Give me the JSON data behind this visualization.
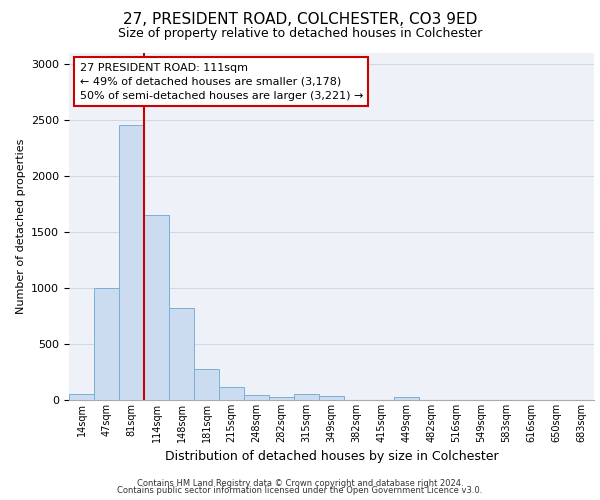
{
  "title1": "27, PRESIDENT ROAD, COLCHESTER, CO3 9ED",
  "title2": "Size of property relative to detached houses in Colchester",
  "xlabel": "Distribution of detached houses by size in Colchester",
  "ylabel": "Number of detached properties",
  "categories": [
    "14sqm",
    "47sqm",
    "81sqm",
    "114sqm",
    "148sqm",
    "181sqm",
    "215sqm",
    "248sqm",
    "282sqm",
    "315sqm",
    "349sqm",
    "382sqm",
    "415sqm",
    "449sqm",
    "482sqm",
    "516sqm",
    "549sqm",
    "583sqm",
    "616sqm",
    "650sqm",
    "683sqm"
  ],
  "values": [
    55,
    1000,
    2450,
    1650,
    825,
    275,
    120,
    45,
    30,
    50,
    40,
    0,
    0,
    25,
    0,
    0,
    0,
    0,
    0,
    0,
    0
  ],
  "bar_color": "#ccdcf0",
  "bar_edge_color": "#7aafd4",
  "vline_x_index": 2,
  "vline_color": "#cc0000",
  "annotation_text": "27 PRESIDENT ROAD: 111sqm\n← 49% of detached houses are smaller (3,178)\n50% of semi-detached houses are larger (3,221) →",
  "annotation_box_color": "#ffffff",
  "annotation_box_edge": "#cc0000",
  "grid_color": "#d0d8e8",
  "background_color": "#eef2f8",
  "footer1": "Contains HM Land Registry data © Crown copyright and database right 2024.",
  "footer2": "Contains public sector information licensed under the Open Government Licence v3.0.",
  "ylim": [
    0,
    3100
  ],
  "title1_fontsize": 11,
  "title2_fontsize": 9,
  "ylabel_fontsize": 8,
  "xlabel_fontsize": 9,
  "tick_fontsize": 7,
  "footer_fontsize": 6,
  "annot_fontsize": 8
}
